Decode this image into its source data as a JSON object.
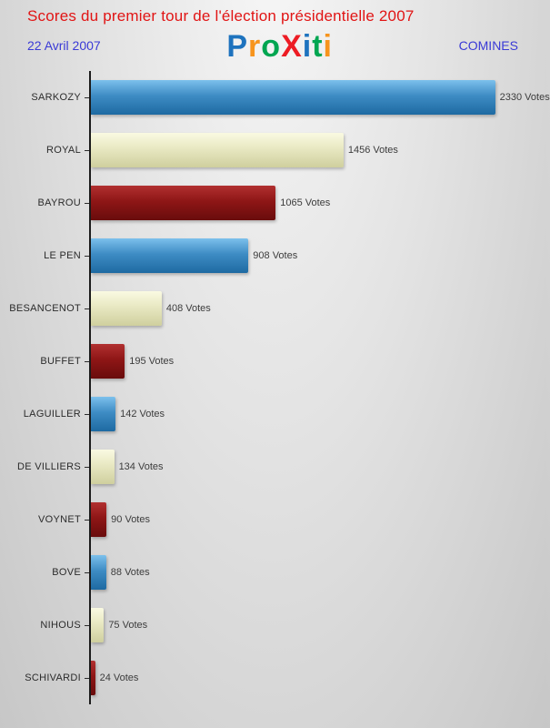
{
  "header": {
    "title": "Scores du premier tour de l'élection présidentielle 2007",
    "date": "22 Avril 2007",
    "location": "COMINES",
    "logo_letters": [
      {
        "ch": "P",
        "color": "#1e73be"
      },
      {
        "ch": "r",
        "color": "#f7941d"
      },
      {
        "ch": "o",
        "color": "#00a651"
      },
      {
        "ch": "X",
        "color": "#ed1c24"
      },
      {
        "ch": "i",
        "color": "#1e73be"
      },
      {
        "ch": "t",
        "color": "#00a651"
      },
      {
        "ch": "i",
        "color": "#f7941d"
      }
    ]
  },
  "chart_data": {
    "type": "bar",
    "orientation": "horizontal",
    "title": "Scores du premier tour de l'élection présidentielle 2007",
    "categories": [
      "SARKOZY",
      "ROYAL",
      "BAYROU",
      "LE PEN",
      "BESANCENOT",
      "BUFFET",
      "LAGUILLER",
      "DE VILLIERS",
      "VOYNET",
      "BOVE",
      "NIHOUS",
      "SCHIVARDI"
    ],
    "values": [
      2330,
      1456,
      1065,
      908,
      408,
      195,
      142,
      134,
      90,
      88,
      75,
      24
    ],
    "value_labels": [
      "2330 Votes",
      "1456 Votes",
      "1065 Votes",
      "908 Votes",
      "408 Votes",
      "195 Votes",
      "142 Votes",
      "134 Votes",
      "90 Votes",
      "88 Votes",
      "75 Votes",
      "24 Votes"
    ],
    "value_suffix": "Votes",
    "xlim": [
      0,
      2620
    ],
    "grid": false,
    "legend": "none",
    "bar_color_keys": [
      "blue",
      "cream",
      "darkred",
      "blue",
      "cream",
      "darkred",
      "blue",
      "cream",
      "darkred",
      "blue",
      "cream",
      "darkred"
    ],
    "palette": {
      "blue": "#2e7cb8",
      "cream": "#e8e8c2",
      "darkred": "#8e1616"
    }
  }
}
